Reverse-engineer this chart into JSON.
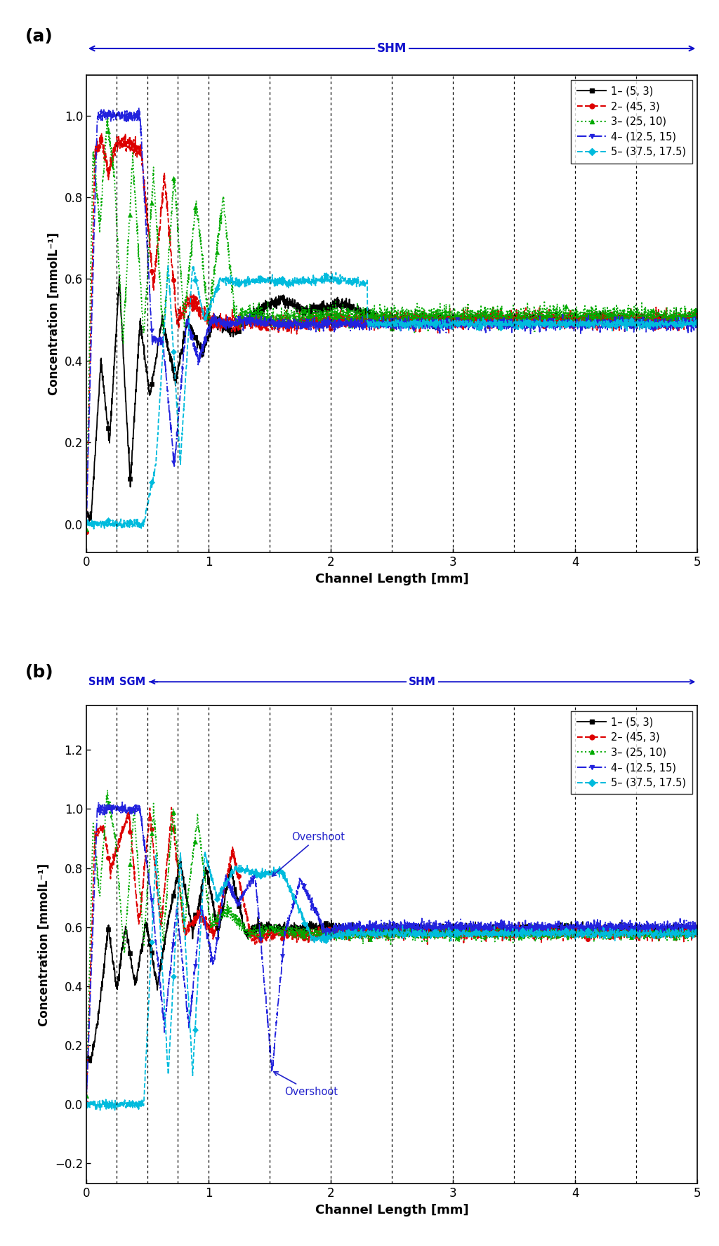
{
  "panel_a": {
    "title_label": "(a)",
    "header_label": "SHM",
    "vlines": [
      0.25,
      0.5,
      0.75,
      1.0,
      1.5,
      2.0,
      2.5,
      3.0,
      3.5,
      4.0,
      4.5
    ],
    "ylim": [
      -0.07,
      1.1
    ],
    "yticks": [
      0.0,
      0.2,
      0.4,
      0.6,
      0.8,
      1.0
    ],
    "xlim": [
      0,
      5
    ],
    "xticks": [
      0,
      1,
      2,
      3,
      4,
      5
    ],
    "xlabel": "Channel Length [mm]",
    "ylabel": "Concentration [mmolL⁻¹]"
  },
  "panel_b": {
    "title_label": "(b)",
    "vlines": [
      0.25,
      0.5,
      0.75,
      1.0,
      1.5,
      2.0,
      2.5,
      3.0,
      3.5,
      4.0,
      4.5
    ],
    "ylim": [
      -0.27,
      1.35
    ],
    "yticks": [
      -0.2,
      0.0,
      0.2,
      0.4,
      0.6,
      0.8,
      1.0,
      1.2
    ],
    "xlim": [
      0,
      5
    ],
    "xticks": [
      0,
      1,
      2,
      3,
      4,
      5
    ],
    "xlabel": "Channel Length [mm]",
    "ylabel": "Concentration [mmolL⁻¹]"
  },
  "legend_entries": [
    {
      "num": "1",
      "label": "(5, 3)",
      "color": "#000000",
      "linestyle": "-",
      "marker": "s"
    },
    {
      "num": "2",
      "label": "(45, 3)",
      "color": "#dd0000",
      "linestyle": "--",
      "marker": "o"
    },
    {
      "num": "3",
      "label": "(25, 10)",
      "color": "#00aa00",
      "linestyle": ":",
      "marker": "^"
    },
    {
      "num": "4",
      "label": "(12.5, 15)",
      "color": "#2222dd",
      "linestyle": "-.",
      "marker": "v"
    },
    {
      "num": "5",
      "label": "(37.5, 17.5)",
      "color": "#00bbdd",
      "linestyle": "--",
      "marker": "D"
    }
  ],
  "blue_color": "#2222cc",
  "header_blue": "#1111cc",
  "vline_color": "#555555",
  "bg_color": "#ffffff"
}
